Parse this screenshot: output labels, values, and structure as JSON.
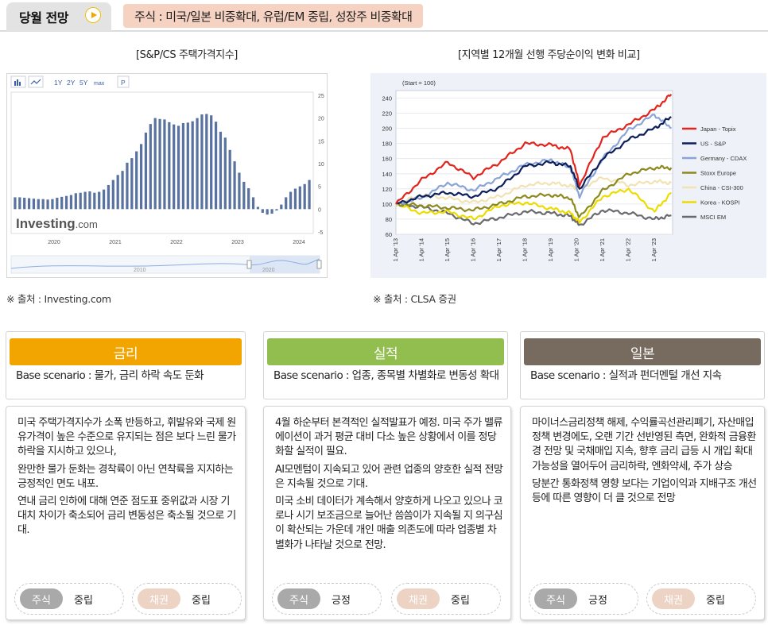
{
  "header": {
    "tab_label": "당월 전망",
    "headline": "주식 : 미국/일본 비중확대, 유럽/EM 중립, 성장주 비중확대"
  },
  "chart_data": [
    {
      "type": "bar",
      "title": "[S&P/CS 주택가격지수]",
      "source": "※ 출처 : Investing.com",
      "watermark": "Investing.com",
      "toolbar": [
        "1Y",
        "2Y",
        "5Y",
        "max",
        "P"
      ],
      "range_selector": [
        "2010",
        "2020"
      ],
      "ylim": [
        -5,
        25
      ],
      "yticks": [
        25,
        20,
        15,
        10,
        5,
        0,
        -5
      ],
      "xticks": [
        "2020",
        "2021",
        "2022",
        "2023",
        "2024"
      ],
      "series_color": "#5a72a0",
      "values": [
        2.6,
        2.6,
        2.5,
        2.4,
        2.3,
        2.2,
        2.2,
        2.1,
        2.2,
        2.5,
        2.7,
        2.9,
        3.1,
        3.5,
        3.6,
        3.8,
        3.9,
        3.6,
        3.8,
        4.3,
        5.3,
        6.4,
        7.5,
        8.4,
        10.2,
        11.2,
        12.7,
        14.3,
        16.8,
        18.7,
        20.0,
        19.8,
        19.7,
        19.1,
        18.6,
        18.3,
        18.9,
        19.0,
        19.3,
        20.0,
        20.8,
        20.9,
        20.6,
        19.2,
        17.0,
        15.7,
        13.0,
        10.5,
        8.0,
        6.0,
        4.6,
        2.6,
        0.5,
        -0.8,
        -1.2,
        -1.0,
        -0.3,
        1.0,
        2.6,
        3.8,
        4.5,
        5.0,
        5.5,
        6.4
      ]
    },
    {
      "type": "line",
      "title": "[지역별 12개월 선행 주당순이익 변화 비교]",
      "source": "※ 출처 : CLSA 증권",
      "ylabel": "(Start = 100)",
      "ylim": [
        60,
        250
      ],
      "yticks": [
        240,
        220,
        200,
        180,
        160,
        140,
        120,
        100,
        80,
        60
      ],
      "xticks": [
        "1 Apr '13",
        "1 Apr '14",
        "1 Apr '15",
        "1 Apr '16",
        "1 Apr '17",
        "1 Apr '18",
        "1 Apr '19",
        "1 Apr '20",
        "1 Apr '21",
        "1 Apr '22",
        "1 Apr '23"
      ],
      "x": [
        2013.25,
        2014.25,
        2015.25,
        2016.25,
        2017.25,
        2018.25,
        2019.25,
        2020.0,
        2020.35,
        2021.25,
        2022.25,
        2023.25,
        2023.9
      ],
      "series": [
        {
          "name": "Japan - Topix",
          "color": "#e3231c",
          "values": [
            100,
            132,
            155,
            135,
            155,
            180,
            178,
            172,
            125,
            188,
            205,
            225,
            245
          ]
        },
        {
          "name": "US - S&P",
          "color": "#0c1f5a",
          "values": [
            100,
            110,
            115,
            110,
            122,
            150,
            155,
            150,
            120,
            160,
            185,
            200,
            215
          ]
        },
        {
          "name": "Germany - CDAX",
          "color": "#8aa4d6",
          "values": [
            100,
            108,
            128,
            118,
            135,
            152,
            158,
            148,
            110,
            160,
            198,
            218,
            200
          ]
        },
        {
          "name": "Stoxx Europe",
          "color": "#8c8a1e",
          "values": [
            100,
            98,
            95,
            92,
            100,
            110,
            112,
            108,
            82,
            118,
            140,
            148,
            148
          ]
        },
        {
          "name": "China - CSI-300",
          "color": "#f2e2b4",
          "values": [
            100,
            112,
            108,
            102,
            110,
            125,
            128,
            124,
            120,
            135,
            125,
            130,
            128
          ]
        },
        {
          "name": "Korea - KOSPI",
          "color": "#ecdc00",
          "values": [
            100,
            88,
            90,
            80,
            98,
            102,
            94,
            88,
            76,
            110,
            120,
            90,
            115
          ]
        },
        {
          "name": "MSCI EM",
          "color": "#6a6a6e",
          "values": [
            100,
            96,
            88,
            74,
            82,
            90,
            88,
            84,
            72,
            92,
            88,
            80,
            85
          ]
        }
      ]
    }
  ],
  "cards": [
    {
      "title": "금리",
      "color": "#f2a400",
      "scenario": "Base scenario : 물가, 금리 하락 속도 둔화",
      "paragraphs": [
        "미국 주택가격지수가 소폭 반등하고, 휘발유와 국제 원유가격이 높은 수준으로 유지되는 점은 보다 느린 물가 하락을 지시하고 있으나,",
        "완만한 물가 둔화는 경착륙이 아닌 연착륙을 지지하는 긍정적인 면도 내포.",
        "연내 금리 인하에 대해 연준 점도표 중위값과 시장 기대치 차이가 축소되어 금리 변동성은 축소될 것으로 기대."
      ],
      "stock": {
        "label": "주식",
        "value": "중립"
      },
      "bond": {
        "label": "채권",
        "value": "중립"
      }
    },
    {
      "title": "실적",
      "color": "#92be4f",
      "scenario": "Base scenario : 업종, 종목별 차별화로 변동성 확대",
      "paragraphs": [
        "4월 하순부터 본격적인 실적발표가 예정. 미국 주가 밸류에이션이 과거 평균 대비 다소 높은 상황에서 이를 정당화할 실적이 필요.",
        "AI모멘텀이 지속되고 있어 관련 업종의 양호한 실적 전망은 지속될 것으로 기대.",
        "미국 소비 데이터가 계속해서 양호하게 나오고 있으나 코로나 시기 보조금으로 늘어난 씀씀이가 지속될 지 의구심이 확산되는 가운데 개인 매출 의존도에 따라 업종별 차별화가 나타날 것으로 전망."
      ],
      "stock": {
        "label": "주식",
        "value": "긍정"
      },
      "bond": {
        "label": "채권",
        "value": "중립"
      }
    },
    {
      "title": "일본",
      "color": "#776a5e",
      "scenario": "Base scenario : 실적과 펀더멘털 개선 지속",
      "paragraphs": [
        "마이너스금리정책 해제, 수익률곡선관리폐기, 자산매입정책 변경에도, 오랜 기간 선반영된 측면, 완화적 금융환경 전망 및 국채매입 지속, 향후 금리 급등 시 개입 확대 가능성을 열어두어 금리하락, 엔화약세, 주가 상승",
        "당분간 통화정책 영향 보다는 기업이익과 지배구조 개선 등에 따른 영향이 더 클 것으로 전망"
      ],
      "stock": {
        "label": "주식",
        "value": "긍정"
      },
      "bond": {
        "label": "채권",
        "value": "중립"
      }
    }
  ]
}
